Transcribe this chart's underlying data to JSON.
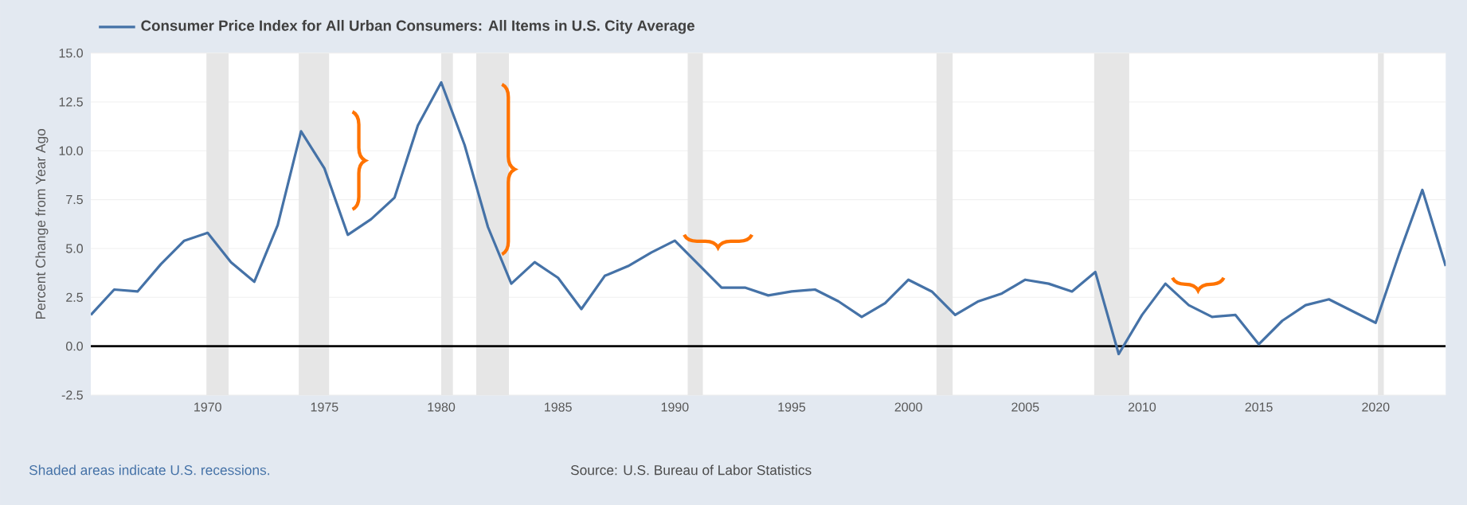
{
  "chart_data": {
    "type": "line",
    "ylabel": "Percent Change from Year Ago",
    "x": [
      1965,
      1966,
      1967,
      1968,
      1969,
      1970,
      1971,
      1972,
      1973,
      1974,
      1975,
      1976,
      1977,
      1978,
      1979,
      1980,
      1981,
      1982,
      1983,
      1984,
      1985,
      1986,
      1987,
      1988,
      1989,
      1990,
      1991,
      1992,
      1993,
      1994,
      1995,
      1996,
      1997,
      1998,
      1999,
      2000,
      2001,
      2002,
      2003,
      2004,
      2005,
      2006,
      2007,
      2008,
      2009,
      2010,
      2011,
      2012,
      2013,
      2014,
      2015,
      2016,
      2017,
      2018,
      2019,
      2020,
      2021,
      2022,
      2023
    ],
    "series": [
      {
        "name": "Consumer Price Index for All Urban Consumers: All Items in U.S. City Average",
        "color": "#4572a7",
        "values": [
          1.6,
          2.9,
          2.8,
          4.2,
          5.4,
          5.8,
          4.3,
          3.3,
          6.2,
          11.0,
          9.1,
          5.7,
          6.5,
          7.6,
          11.3,
          13.5,
          10.3,
          6.1,
          3.2,
          4.3,
          3.5,
          1.9,
          3.6,
          4.1,
          4.8,
          5.4,
          4.2,
          3.0,
          3.0,
          2.6,
          2.8,
          2.9,
          2.3,
          1.5,
          2.2,
          3.4,
          2.8,
          1.6,
          2.3,
          2.7,
          3.4,
          3.2,
          2.8,
          3.8,
          -0.4,
          1.6,
          3.2,
          2.1,
          1.5,
          1.6,
          0.1,
          1.3,
          2.1,
          2.4,
          1.8,
          1.2,
          4.7,
          8.0,
          4.1
        ]
      }
    ],
    "xlim": [
      1965,
      2023
    ],
    "xticks": [
      1970,
      1975,
      1980,
      1985,
      1990,
      1995,
      2000,
      2005,
      2010,
      2015,
      2020
    ],
    "ylim": [
      -2.5,
      15
    ],
    "yticks": [
      {
        "value": -2.5,
        "label": "-2.5"
      },
      {
        "value": 0,
        "label": "0.0"
      },
      {
        "value": 2.5,
        "label": "2.5"
      },
      {
        "value": 5,
        "label": "5.0"
      },
      {
        "value": 7.5,
        "label": "7.5"
      },
      {
        "value": 10,
        "label": "10.0"
      },
      {
        "value": 12.5,
        "label": "12.5"
      },
      {
        "value": 15,
        "label": "15.0"
      }
    ],
    "grid": "y",
    "legend": "top left",
    "marker": "none",
    "line_style": "solid",
    "ref_lines": [
      {
        "axis": "y",
        "value": 0,
        "color": "#000000"
      }
    ],
    "bands": [
      {
        "axis": "x",
        "from": 1969.95,
        "to": 1970.9,
        "color": "#e6e6e6"
      },
      {
        "axis": "x",
        "from": 1973.9,
        "to": 1975.2,
        "color": "#e6e6e6"
      },
      {
        "axis": "x",
        "from": 1980.0,
        "to": 1980.5,
        "color": "#e6e6e6"
      },
      {
        "axis": "x",
        "from": 1981.5,
        "to": 1982.9,
        "color": "#e6e6e6"
      },
      {
        "axis": "x",
        "from": 1990.55,
        "to": 1991.2,
        "color": "#e6e6e6"
      },
      {
        "axis": "x",
        "from": 2001.2,
        "to": 2001.9,
        "color": "#e6e6e6"
      },
      {
        "axis": "x",
        "from": 2007.95,
        "to": 2009.45,
        "color": "#e6e6e6"
      },
      {
        "axis": "x",
        "from": 2020.1,
        "to": 2020.35,
        "color": "#e6e6e6"
      }
    ],
    "annotations": [
      "Shaded areas indicate U.S. recessions.",
      "Source: U.S. Bureau of Labor Statistics"
    ]
  }
}
